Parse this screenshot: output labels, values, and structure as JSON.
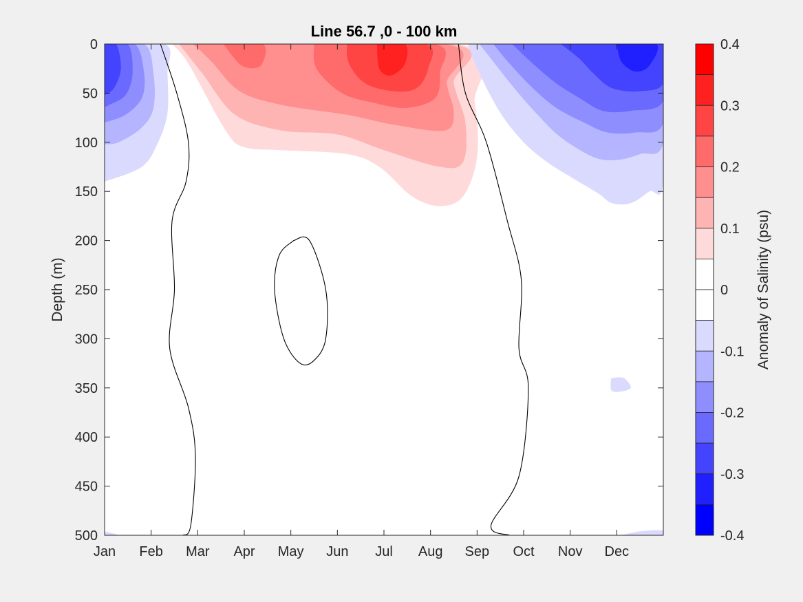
{
  "chart_data": {
    "type": "contourf",
    "title": "Line 56.7 ,0 - 100 km",
    "xlabel": "",
    "ylabel": "Depth (m)",
    "colorbar_label": "Anomaly of Salinity (psu)",
    "x_tick_labels": [
      "Jan",
      "Feb",
      "Mar",
      "Apr",
      "May",
      "Jun",
      "Jul",
      "Aug",
      "Sep",
      "Oct",
      "Nov",
      "Dec"
    ],
    "xlim": [
      1,
      13
    ],
    "ylim": [
      500,
      0
    ],
    "y_ticks": [
      0,
      50,
      100,
      150,
      200,
      250,
      300,
      350,
      400,
      450,
      500
    ],
    "colorbar_ticks": [
      0.4,
      0.3,
      0.2,
      0.1,
      0,
      -0.1,
      -0.2,
      -0.3,
      -0.4
    ],
    "colorbar_levels": [
      {
        "lo": 0.35,
        "hi": 0.4,
        "color": "#ff0000"
      },
      {
        "lo": 0.3,
        "hi": 0.35,
        "color": "#ff2020"
      },
      {
        "lo": 0.25,
        "hi": 0.3,
        "color": "#ff4444"
      },
      {
        "lo": 0.2,
        "hi": 0.25,
        "color": "#ff6a6a"
      },
      {
        "lo": 0.15,
        "hi": 0.2,
        "color": "#ff8e8e"
      },
      {
        "lo": 0.1,
        "hi": 0.15,
        "color": "#ffb4b4"
      },
      {
        "lo": 0.05,
        "hi": 0.1,
        "color": "#ffdada"
      },
      {
        "lo": 0.0,
        "hi": 0.05,
        "color": "#ffffff"
      },
      {
        "lo": -0.05,
        "hi": 0.0,
        "color": "#ffffff"
      },
      {
        "lo": -0.1,
        "hi": -0.05,
        "color": "#dadaff"
      },
      {
        "lo": -0.15,
        "hi": -0.1,
        "color": "#b4b4ff"
      },
      {
        "lo": -0.2,
        "hi": -0.15,
        "color": "#8e8eff"
      },
      {
        "lo": -0.25,
        "hi": -0.2,
        "color": "#6a6aff"
      },
      {
        "lo": -0.3,
        "hi": -0.25,
        "color": "#4444ff"
      },
      {
        "lo": -0.35,
        "hi": -0.3,
        "color": "#2020ff"
      },
      {
        "lo": -0.4,
        "hi": -0.35,
        "color": "#0000ff"
      }
    ],
    "regions": [
      {
        "name": "winter-negative-anomaly",
        "months": "Jan-Feb",
        "depth_range": [
          0,
          140
        ],
        "min_value": -0.3
      },
      {
        "name": "spring-summer-positive-anomaly",
        "months": "Feb-Aug",
        "depth_range": [
          0,
          165
        ],
        "max_value": 0.35
      },
      {
        "name": "fall-winter-negative-anomaly",
        "months": "Sep-Dec",
        "depth_range": [
          0,
          165
        ],
        "min_value": -0.35
      }
    ],
    "zero_contours": [
      {
        "name": "early-year-zero-line",
        "points": [
          [
            2.2,
            0
          ],
          [
            2.55,
            50
          ],
          [
            2.8,
            100
          ],
          [
            2.75,
            140
          ],
          [
            2.45,
            180
          ],
          [
            2.5,
            250
          ],
          [
            2.4,
            310
          ],
          [
            2.8,
            370
          ],
          [
            2.95,
            420
          ],
          [
            2.85,
            490
          ],
          [
            2.68,
            500
          ]
        ]
      },
      {
        "name": "late-year-zero-line",
        "points": [
          [
            8.6,
            0
          ],
          [
            8.75,
            50
          ],
          [
            9.2,
            100
          ],
          [
            9.65,
            180
          ],
          [
            9.95,
            240
          ],
          [
            9.9,
            310
          ],
          [
            10.1,
            350
          ],
          [
            9.9,
            440
          ],
          [
            9.3,
            490
          ],
          [
            9.7,
            500
          ]
        ]
      },
      {
        "name": "closed-zero-contour",
        "points": [
          [
            5.06,
            200
          ],
          [
            5.4,
            200
          ],
          [
            5.75,
            250
          ],
          [
            5.75,
            300
          ],
          [
            5.5,
            322
          ],
          [
            5.2,
            325
          ],
          [
            4.85,
            300
          ],
          [
            4.65,
            250
          ],
          [
            4.75,
            215
          ],
          [
            5.06,
            200
          ]
        ]
      }
    ]
  }
}
